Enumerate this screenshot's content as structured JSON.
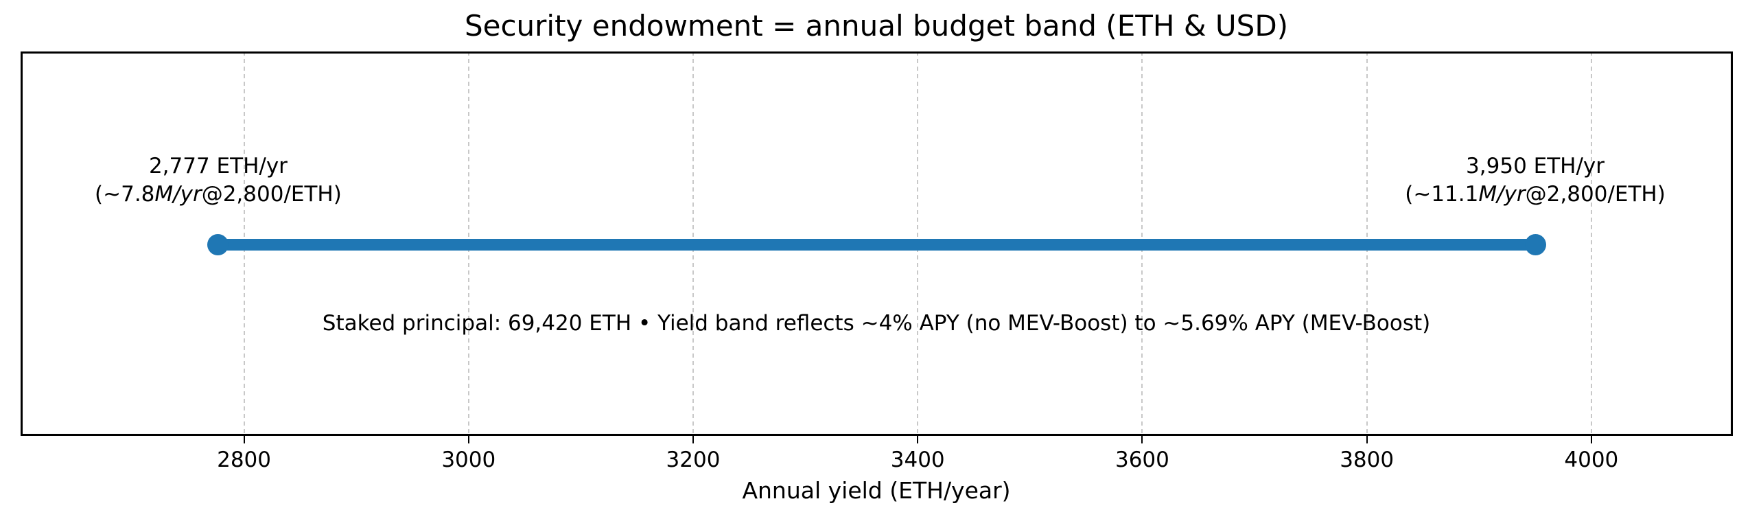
{
  "chart_data": {
    "type": "line",
    "subtype": "horizontal_range_band",
    "title": "Security endowment = annual budget band (ETH & USD)",
    "xlabel": "Annual yield (ETH/year)",
    "x_ticks": [
      2800,
      3000,
      3200,
      3400,
      3600,
      3800,
      4000
    ],
    "xlim": [
      2601,
      4126
    ],
    "grid": {
      "axis": "x",
      "style": "dashed",
      "color": "#c8c8c8"
    },
    "band": {
      "x_start": 2777,
      "x_end": 3950,
      "y_fraction_from_top": 0.503,
      "color": "#1f77b4",
      "endpoint_marker": "circle"
    },
    "annotations": {
      "left": {
        "x": 2777,
        "line1": "2,777 ETH/yr",
        "line2_pre": "(~7.8",
        "line2_italic": "M/yr",
        "line2_post": "@2,800/ETH)"
      },
      "right": {
        "x": 3950,
        "line1": "3,950 ETH/yr",
        "line2_pre": "(~11.1",
        "line2_italic": "M/yr",
        "line2_post": "@2,800/ETH)"
      },
      "note": "Staked principal: 69,420 ETH • Yield band reflects ~4% APY (no MEV-Boost) to ~5.69% APY (MEV-Boost)"
    },
    "colors": {
      "band": "#1f77b4",
      "text": "#000000",
      "grid": "#c8c8c8",
      "spine": "#000000",
      "background": "#ffffff"
    }
  }
}
